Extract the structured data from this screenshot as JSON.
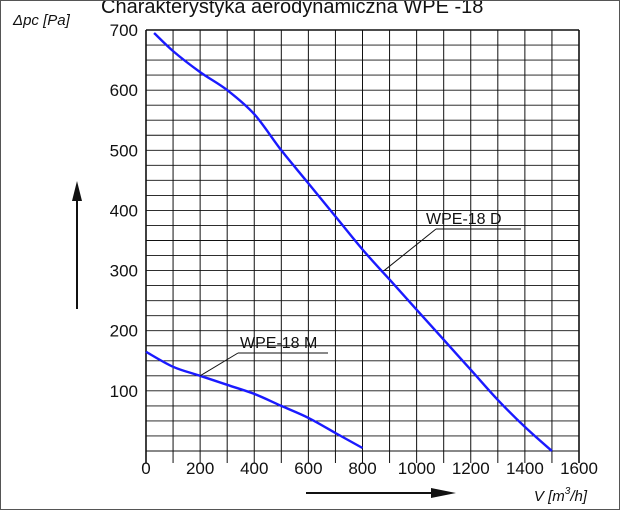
{
  "chart_data": {
    "type": "line",
    "title": "Charakterystyka aerodynamiczna  WPE -18",
    "ylabel": "Δpc [Pa]",
    "xlabel_prefix": "V [m",
    "xlabel_sup": "3",
    "xlabel_suffix": "/h]",
    "xlim": [
      0,
      1600
    ],
    "ylim": [
      0,
      700
    ],
    "x_ticks": [
      0,
      200,
      400,
      600,
      800,
      1000,
      1200,
      1400,
      1600
    ],
    "y_ticks": [
      100,
      200,
      300,
      400,
      500,
      600,
      700
    ],
    "grid": true,
    "series": [
      {
        "name": "WPE-18 D",
        "color": "#1a1aff",
        "x": [
          30,
          100,
          200,
          300,
          400,
          500,
          600,
          700,
          800,
          900,
          1000,
          1100,
          1200,
          1300,
          1400,
          1500
        ],
        "y": [
          695,
          665,
          630,
          600,
          560,
          500,
          445,
          390,
          335,
          285,
          235,
          185,
          135,
          85,
          40,
          0
        ]
      },
      {
        "name": "WPE-18 M",
        "color": "#1a1aff",
        "x": [
          0,
          100,
          200,
          300,
          400,
          500,
          600,
          700,
          800
        ],
        "y": [
          165,
          140,
          125,
          110,
          95,
          75,
          55,
          30,
          5
        ]
      }
    ]
  }
}
